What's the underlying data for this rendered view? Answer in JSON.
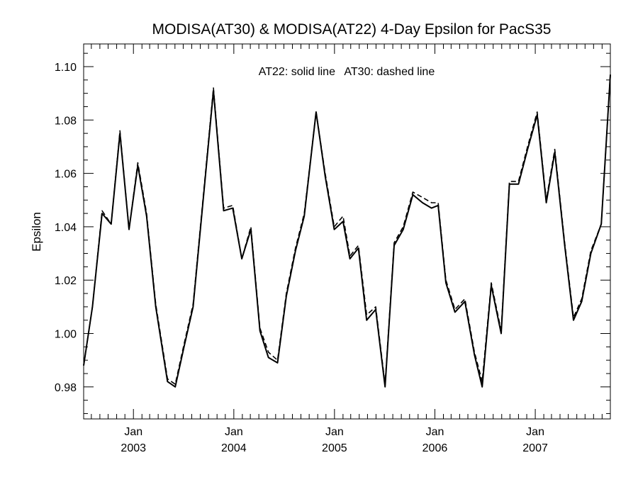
{
  "chart_data": {
    "type": "line",
    "title": "MODISA(AT30) & MODISA(AT22) 4-Day Epsilon for PacS35",
    "xlabel": "",
    "ylabel": "Epsilon",
    "annotation": "AT22: solid line   AT30: dashed line",
    "ylim": [
      0.968,
      1.1085
    ],
    "xlim": [
      "2002-07-04",
      "2007-10-01"
    ],
    "grid": false,
    "yticks": [
      "0.98",
      "1.00",
      "1.02",
      "1.04",
      "1.06",
      "1.08",
      "1.10"
    ],
    "xticks": [
      {
        "date": "2003-01-01",
        "month": "Jan",
        "year": "2003"
      },
      {
        "date": "2004-01-01",
        "month": "Jan",
        "year": "2004"
      },
      {
        "date": "2005-01-01",
        "month": "Jan",
        "year": "2005"
      },
      {
        "date": "2006-01-01",
        "month": "Jan",
        "year": "2006"
      },
      {
        "date": "2007-01-01",
        "month": "Jan",
        "year": "2007"
      }
    ],
    "series": [
      {
        "name": "AT22",
        "style": "solid",
        "color": "#000000",
        "points": [
          [
            "2002-07-04",
            0.988
          ],
          [
            "2002-08-05",
            1.01
          ],
          [
            "2002-09-09",
            1.045
          ],
          [
            "2002-10-12",
            1.041
          ],
          [
            "2002-11-13",
            1.075
          ],
          [
            "2002-12-16",
            1.039
          ],
          [
            "2003-01-17",
            1.063
          ],
          [
            "2003-02-18",
            1.044
          ],
          [
            "2003-03-23",
            1.01
          ],
          [
            "2003-05-05",
            0.982
          ],
          [
            "2003-06-02",
            0.98
          ],
          [
            "2003-07-04",
            0.995
          ],
          [
            "2003-08-06",
            1.01
          ],
          [
            "2003-10-19",
            1.091
          ],
          [
            "2003-11-25",
            1.046
          ],
          [
            "2003-12-28",
            1.047
          ],
          [
            "2004-01-30",
            1.028
          ],
          [
            "2004-03-03",
            1.039
          ],
          [
            "2004-04-05",
            1.001
          ],
          [
            "2004-05-06",
            0.991
          ],
          [
            "2004-06-08",
            0.989
          ],
          [
            "2004-07-10",
            1.014
          ],
          [
            "2004-08-12",
            1.031
          ],
          [
            "2004-09-13",
            1.044
          ],
          [
            "2004-10-26",
            1.083
          ],
          [
            "2004-11-28",
            1.059
          ],
          [
            "2004-12-31",
            1.039
          ],
          [
            "2005-02-01",
            1.042
          ],
          [
            "2005-02-26",
            1.028
          ],
          [
            "2005-03-29",
            1.032
          ],
          [
            "2005-04-28",
            1.005
          ],
          [
            "2005-05-31",
            1.009
          ],
          [
            "2005-07-04",
            0.98
          ],
          [
            "2005-08-06",
            1.033
          ],
          [
            "2005-09-08",
            1.039
          ],
          [
            "2005-10-13",
            1.052
          ],
          [
            "2005-11-17",
            1.049
          ],
          [
            "2005-12-20",
            1.047
          ],
          [
            "2006-01-13",
            1.048
          ],
          [
            "2006-02-10",
            1.019
          ],
          [
            "2006-03-15",
            1.008
          ],
          [
            "2006-04-20",
            1.012
          ],
          [
            "2006-05-25",
            0.992
          ],
          [
            "2006-06-22",
            0.98
          ],
          [
            "2006-07-25",
            1.018
          ],
          [
            "2006-08-30",
            1.0
          ],
          [
            "2006-09-29",
            1.056
          ],
          [
            "2006-11-01",
            1.056
          ],
          [
            "2006-12-04",
            1.069
          ],
          [
            "2007-01-08",
            1.082
          ],
          [
            "2007-02-10",
            1.049
          ],
          [
            "2007-03-13",
            1.068
          ],
          [
            "2007-04-18",
            1.033
          ],
          [
            "2007-05-20",
            1.005
          ],
          [
            "2007-06-19",
            1.012
          ],
          [
            "2007-07-22",
            1.03
          ],
          [
            "2007-08-29",
            1.041
          ],
          [
            "2007-10-01",
            1.097
          ]
        ]
      },
      {
        "name": "AT30",
        "style": "dashed",
        "color": "#000000",
        "points": [
          [
            "2002-07-04",
            0.988
          ],
          [
            "2002-08-05",
            1.01
          ],
          [
            "2002-09-09",
            1.046
          ],
          [
            "2002-10-12",
            1.041
          ],
          [
            "2002-11-13",
            1.076
          ],
          [
            "2002-12-16",
            1.039
          ],
          [
            "2003-01-17",
            1.064
          ],
          [
            "2003-02-18",
            1.045
          ],
          [
            "2003-03-23",
            1.011
          ],
          [
            "2003-05-05",
            0.983
          ],
          [
            "2003-06-02",
            0.981
          ],
          [
            "2003-07-04",
            0.996
          ],
          [
            "2003-08-06",
            1.011
          ],
          [
            "2003-10-19",
            1.092
          ],
          [
            "2003-11-25",
            1.047
          ],
          [
            "2003-12-28",
            1.048
          ],
          [
            "2004-01-30",
            1.028
          ],
          [
            "2004-03-03",
            1.04
          ],
          [
            "2004-04-05",
            1.002
          ],
          [
            "2004-05-06",
            0.993
          ],
          [
            "2004-06-08",
            0.99
          ],
          [
            "2004-07-10",
            1.015
          ],
          [
            "2004-08-12",
            1.032
          ],
          [
            "2004-09-13",
            1.045
          ],
          [
            "2004-10-26",
            1.083
          ],
          [
            "2004-11-28",
            1.06
          ],
          [
            "2004-12-31",
            1.04
          ],
          [
            "2005-02-01",
            1.044
          ],
          [
            "2005-02-26",
            1.029
          ],
          [
            "2005-03-29",
            1.033
          ],
          [
            "2005-04-28",
            1.007
          ],
          [
            "2005-05-31",
            1.01
          ],
          [
            "2005-07-04",
            0.981
          ],
          [
            "2005-08-06",
            1.034
          ],
          [
            "2005-09-08",
            1.04
          ],
          [
            "2005-10-13",
            1.053
          ],
          [
            "2005-11-17",
            1.051
          ],
          [
            "2005-12-20",
            1.049
          ],
          [
            "2006-01-13",
            1.049
          ],
          [
            "2006-02-10",
            1.02
          ],
          [
            "2006-03-15",
            1.009
          ],
          [
            "2006-04-20",
            1.013
          ],
          [
            "2006-05-25",
            0.993
          ],
          [
            "2006-06-22",
            0.982
          ],
          [
            "2006-07-25",
            1.019
          ],
          [
            "2006-08-30",
            1.001
          ],
          [
            "2006-09-29",
            1.057
          ],
          [
            "2006-11-01",
            1.057
          ],
          [
            "2006-12-04",
            1.07
          ],
          [
            "2007-01-08",
            1.083
          ],
          [
            "2007-02-10",
            1.05
          ],
          [
            "2007-03-13",
            1.069
          ],
          [
            "2007-04-18",
            1.034
          ],
          [
            "2007-05-20",
            1.006
          ],
          [
            "2007-06-19",
            1.013
          ],
          [
            "2007-07-22",
            1.031
          ],
          [
            "2007-08-29",
            1.041
          ],
          [
            "2007-10-01",
            1.097
          ]
        ]
      }
    ]
  }
}
